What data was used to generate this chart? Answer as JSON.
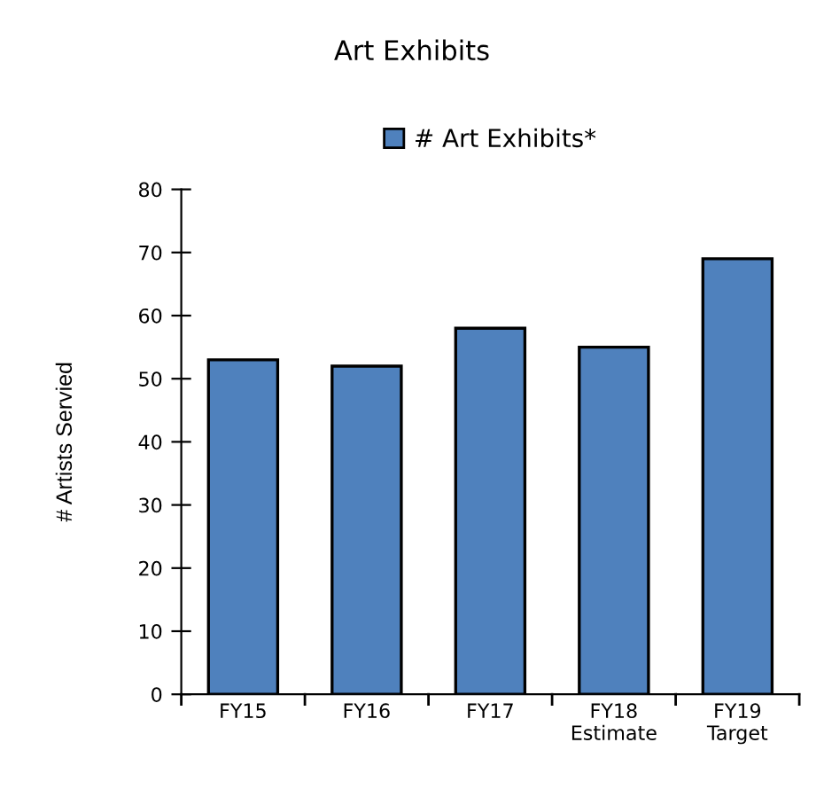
{
  "chart_data": {
    "type": "bar",
    "title": "Art Exhibits",
    "ylabel": "# Artists Servied",
    "categories": [
      "FY15",
      "FY16",
      "FY17",
      "FY18\nEstimate",
      "FY19\nTarget"
    ],
    "series": [
      {
        "name": "# Art Exhibits*",
        "color": "#4f81bd",
        "values": [
          53,
          52,
          58,
          55,
          69
        ]
      }
    ],
    "ylim": [
      0,
      80
    ],
    "yticks": [
      0,
      10,
      20,
      30,
      40,
      50,
      60,
      70,
      80
    ],
    "grid": false,
    "legend": "top"
  }
}
